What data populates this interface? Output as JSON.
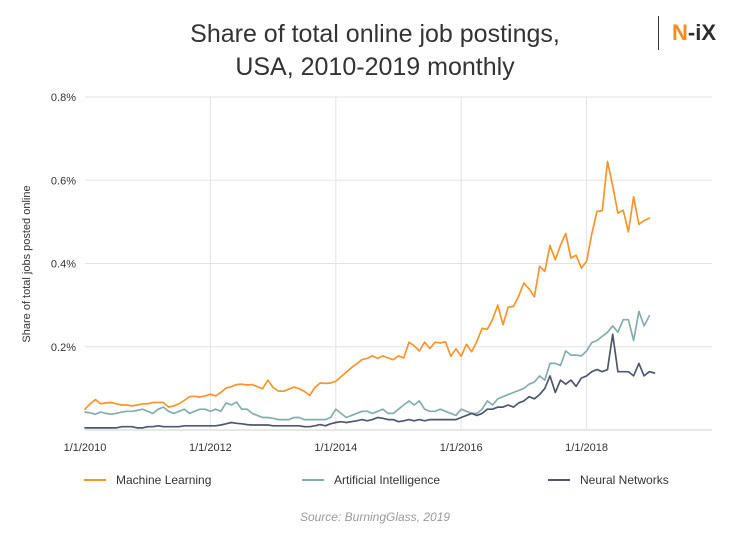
{
  "header": {
    "title_line1": "Share of total online job postings,",
    "title_line2": "USA, 2010-2019 monthly",
    "logo_n": "N",
    "logo_rest": "-iX"
  },
  "source": "Source: BurningGlass, 2019",
  "chart_data": {
    "type": "line",
    "title": "Share of total online job postings, USA, 2010-2019 monthly",
    "xlabel": "",
    "ylabel": "Share of total jobs posted online",
    "x_ticks": [
      "1/1/2010",
      "1/1/2012",
      "1/1/2014",
      "1/1/2016",
      "1/1/2018"
    ],
    "y_ticks": [
      "0.2%",
      "0.4%",
      "0.6%",
      "0.8%"
    ],
    "xlim": [
      "2010-01",
      "2019-12"
    ],
    "ylim": [
      0,
      0.8
    ],
    "grid": true,
    "legend_position": "bottom",
    "x_start": "2010-01",
    "x_frequency": "monthly",
    "series": [
      {
        "name": "Machine Learning",
        "color": "#f6952a",
        "values": [
          0.05,
          0.063,
          0.073,
          0.063,
          0.065,
          0.066,
          0.063,
          0.06,
          0.06,
          0.058,
          0.06,
          0.063,
          0.063,
          0.066,
          0.066,
          0.066,
          0.055,
          0.058,
          0.063,
          0.071,
          0.08,
          0.081,
          0.079,
          0.082,
          0.086,
          0.082,
          0.09,
          0.101,
          0.104,
          0.109,
          0.11,
          0.108,
          0.109,
          0.104,
          0.099,
          0.12,
          0.102,
          0.094,
          0.093,
          0.098,
          0.103,
          0.099,
          0.093,
          0.083,
          0.102,
          0.113,
          0.112,
          0.113,
          0.117,
          0.128,
          0.139,
          0.15,
          0.159,
          0.169,
          0.172,
          0.178,
          0.172,
          0.178,
          0.173,
          0.169,
          0.178,
          0.173,
          0.211,
          0.202,
          0.19,
          0.211,
          0.196,
          0.211,
          0.209,
          0.212,
          0.177,
          0.195,
          0.177,
          0.206,
          0.188,
          0.213,
          0.244,
          0.242,
          0.266,
          0.3,
          0.253,
          0.295,
          0.297,
          0.322,
          0.353,
          0.339,
          0.32,
          0.393,
          0.381,
          0.443,
          0.409,
          0.444,
          0.472,
          0.413,
          0.42,
          0.389,
          0.405,
          0.471,
          0.525,
          0.527,
          0.645,
          0.587,
          0.521,
          0.528,
          0.476,
          0.56,
          0.494,
          0.503,
          0.509
        ]
      },
      {
        "name": "Artificial Intelligence",
        "color": "#84aeab",
        "values": [
          0.043,
          0.041,
          0.038,
          0.043,
          0.04,
          0.038,
          0.04,
          0.043,
          0.045,
          0.045,
          0.047,
          0.05,
          0.045,
          0.04,
          0.05,
          0.055,
          0.045,
          0.04,
          0.045,
          0.05,
          0.04,
          0.045,
          0.05,
          0.05,
          0.045,
          0.05,
          0.045,
          0.065,
          0.06,
          0.067,
          0.05,
          0.05,
          0.04,
          0.035,
          0.03,
          0.03,
          0.028,
          0.025,
          0.025,
          0.025,
          0.03,
          0.03,
          0.025,
          0.025,
          0.025,
          0.025,
          0.025,
          0.03,
          0.05,
          0.04,
          0.03,
          0.035,
          0.04,
          0.045,
          0.045,
          0.04,
          0.045,
          0.05,
          0.04,
          0.04,
          0.05,
          0.06,
          0.07,
          0.06,
          0.07,
          0.05,
          0.045,
          0.045,
          0.05,
          0.045,
          0.04,
          0.035,
          0.05,
          0.045,
          0.04,
          0.04,
          0.05,
          0.07,
          0.06,
          0.075,
          0.08,
          0.085,
          0.09,
          0.095,
          0.1,
          0.11,
          0.115,
          0.13,
          0.12,
          0.16,
          0.16,
          0.155,
          0.19,
          0.18,
          0.18,
          0.178,
          0.19,
          0.21,
          0.215,
          0.225,
          0.235,
          0.25,
          0.235,
          0.265,
          0.265,
          0.215,
          0.285,
          0.25,
          0.274
        ]
      },
      {
        "name": "Neural Networks",
        "color": "#4e576b",
        "values": [
          0.005,
          0.005,
          0.005,
          0.005,
          0.005,
          0.005,
          0.005,
          0.008,
          0.008,
          0.008,
          0.005,
          0.005,
          0.008,
          0.008,
          0.01,
          0.008,
          0.008,
          0.008,
          0.008,
          0.01,
          0.01,
          0.01,
          0.01,
          0.01,
          0.01,
          0.01,
          0.012,
          0.015,
          0.018,
          0.016,
          0.015,
          0.013,
          0.012,
          0.012,
          0.012,
          0.012,
          0.01,
          0.01,
          0.01,
          0.01,
          0.01,
          0.01,
          0.008,
          0.008,
          0.01,
          0.013,
          0.01,
          0.015,
          0.018,
          0.02,
          0.018,
          0.02,
          0.022,
          0.025,
          0.022,
          0.025,
          0.03,
          0.028,
          0.025,
          0.025,
          0.02,
          0.022,
          0.025,
          0.022,
          0.025,
          0.022,
          0.025,
          0.025,
          0.025,
          0.025,
          0.025,
          0.025,
          0.03,
          0.035,
          0.04,
          0.035,
          0.04,
          0.05,
          0.05,
          0.055,
          0.055,
          0.06,
          0.055,
          0.065,
          0.07,
          0.08,
          0.075,
          0.085,
          0.1,
          0.13,
          0.09,
          0.12,
          0.11,
          0.12,
          0.105,
          0.125,
          0.13,
          0.14,
          0.145,
          0.14,
          0.145,
          0.23,
          0.14,
          0.14,
          0.14,
          0.13,
          0.16,
          0.13,
          0.14,
          0.137
        ]
      }
    ]
  }
}
